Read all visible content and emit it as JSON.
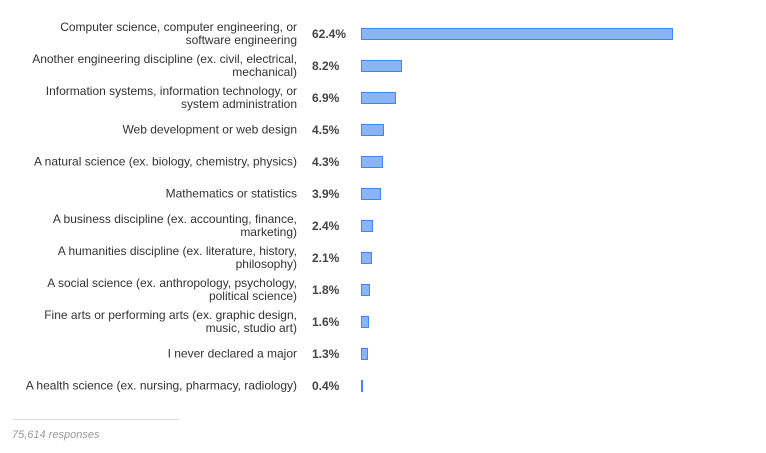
{
  "chart_data": {
    "type": "bar",
    "orientation": "horizontal",
    "categories": [
      "Computer science, computer engineering, or software engineering",
      "Another engineering discipline (ex. civil, electrical, mechanical)",
      "Information systems, information technology, or system administration",
      "Web development or web design",
      "A natural science (ex. biology, chemistry, physics)",
      "Mathematics or statistics",
      "A business discipline (ex. accounting, finance, marketing)",
      "A humanities discipline (ex. literature, history, philosophy)",
      "A social science (ex. anthropology, psychology, political science)",
      "Fine arts or performing arts (ex. graphic design, music, studio art)",
      "I never declared a major",
      "A health science (ex. nursing, pharmacy, radiology)"
    ],
    "values": [
      62.4,
      8.2,
      6.9,
      4.5,
      4.3,
      3.9,
      2.4,
      2.1,
      1.8,
      1.6,
      1.3,
      0.4
    ],
    "value_labels": [
      "62.4%",
      "8.2%",
      "6.9%",
      "4.5%",
      "4.3%",
      "3.9%",
      "2.4%",
      "2.1%",
      "1.8%",
      "1.6%",
      "1.3%",
      "0.4%"
    ],
    "color": "#8ab4f8",
    "border_color": "#4285f4",
    "footnote": "75,614 responses"
  }
}
